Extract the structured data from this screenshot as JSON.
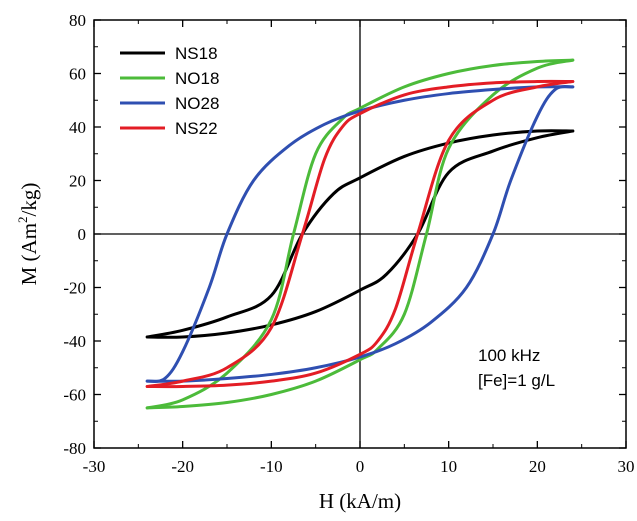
{
  "chart_data": {
    "type": "line",
    "xlabel": "H (kA/m)",
    "ylabel_parts": [
      "M (Am",
      "2",
      "/kg)"
    ],
    "xlim": [
      -30,
      30
    ],
    "ylim": [
      -80,
      80
    ],
    "xticks": [
      -30,
      -20,
      -10,
      0,
      10,
      20,
      30
    ],
    "yticks": [
      -80,
      -60,
      -40,
      -20,
      0,
      20,
      40,
      60,
      80
    ],
    "grid": false,
    "zero_lines": true,
    "legend_position": "top-left",
    "annotations": [
      "100 kHz",
      "[Fe]=1 g/L"
    ],
    "series": [
      {
        "name": "NS18",
        "color": "#000000",
        "hc": 6.5,
        "ms": 38.5,
        "hmax": 24,
        "upper": [
          [
            -24,
            -38.5
          ],
          [
            -20,
            -36
          ],
          [
            -15,
            -31
          ],
          [
            -10,
            -23
          ],
          [
            -6.5,
            0
          ],
          [
            -3,
            15
          ],
          [
            0,
            21
          ],
          [
            5,
            29
          ],
          [
            10,
            34
          ],
          [
            15,
            37
          ],
          [
            20,
            38.5
          ],
          [
            24,
            38.5
          ]
        ],
        "lower": [
          [
            24,
            38.5
          ],
          [
            20,
            36
          ],
          [
            15,
            31
          ],
          [
            10,
            23
          ],
          [
            6.5,
            0
          ],
          [
            3,
            -15
          ],
          [
            0,
            -21
          ],
          [
            -5,
            -29
          ],
          [
            -10,
            -34
          ],
          [
            -15,
            -37
          ],
          [
            -20,
            -38.5
          ],
          [
            -24,
            -38.5
          ]
        ]
      },
      {
        "name": "NO18",
        "color": "#4cbb3a",
        "hc": 7.5,
        "ms": 65,
        "hmax": 24,
        "upper": [
          [
            -24,
            -65
          ],
          [
            -20,
            -62
          ],
          [
            -15,
            -52
          ],
          [
            -10,
            -32
          ],
          [
            -7.5,
            0
          ],
          [
            -5,
            30
          ],
          [
            -2,
            43
          ],
          [
            0,
            47
          ],
          [
            5,
            55
          ],
          [
            10,
            60
          ],
          [
            15,
            63
          ],
          [
            20,
            64.5
          ],
          [
            24,
            65
          ]
        ],
        "lower": [
          [
            24,
            65
          ],
          [
            20,
            62
          ],
          [
            15,
            52
          ],
          [
            10,
            32
          ],
          [
            7.5,
            0
          ],
          [
            5,
            -30
          ],
          [
            2,
            -43
          ],
          [
            0,
            -47
          ],
          [
            -5,
            -55
          ],
          [
            -10,
            -60
          ],
          [
            -15,
            -63
          ],
          [
            -20,
            -64.5
          ],
          [
            -24,
            -65
          ]
        ]
      },
      {
        "name": "NO28",
        "color": "#2f4fb1",
        "hc": 15,
        "ms": 55,
        "hmax": 24,
        "upper": [
          [
            -24,
            -55
          ],
          [
            -22,
            -54
          ],
          [
            -20,
            -44
          ],
          [
            -17,
            -20
          ],
          [
            -15,
            0
          ],
          [
            -12,
            20
          ],
          [
            -8,
            33
          ],
          [
            -4,
            41
          ],
          [
            0,
            46
          ],
          [
            5,
            50
          ],
          [
            10,
            52.5
          ],
          [
            15,
            54
          ],
          [
            20,
            55
          ],
          [
            24,
            55
          ]
        ],
        "lower": [
          [
            24,
            55
          ],
          [
            22,
            54
          ],
          [
            20,
            44
          ],
          [
            17,
            20
          ],
          [
            15,
            0
          ],
          [
            12,
            -20
          ],
          [
            8,
            -33
          ],
          [
            4,
            -41
          ],
          [
            0,
            -46
          ],
          [
            -5,
            -50
          ],
          [
            -10,
            -52.5
          ],
          [
            -15,
            -54
          ],
          [
            -20,
            -55
          ],
          [
            -24,
            -55
          ]
        ]
      },
      {
        "name": "NS22",
        "color": "#e31d25",
        "hc": 6.5,
        "ms": 57,
        "hmax": 24,
        "upper": [
          [
            -24,
            -57
          ],
          [
            -20,
            -55
          ],
          [
            -15,
            -50
          ],
          [
            -10,
            -35
          ],
          [
            -6.5,
            0
          ],
          [
            -4,
            28
          ],
          [
            -2,
            40
          ],
          [
            0,
            45
          ],
          [
            5,
            52
          ],
          [
            10,
            55
          ],
          [
            15,
            56.5
          ],
          [
            20,
            57
          ],
          [
            24,
            57
          ]
        ],
        "lower": [
          [
            24,
            57
          ],
          [
            20,
            55
          ],
          [
            15,
            50
          ],
          [
            10,
            35
          ],
          [
            6.5,
            0
          ],
          [
            4,
            -28
          ],
          [
            2,
            -40
          ],
          [
            0,
            -45
          ],
          [
            -5,
            -52
          ],
          [
            -10,
            -55
          ],
          [
            -15,
            -56.5
          ],
          [
            -20,
            -57
          ],
          [
            -24,
            -57
          ]
        ]
      }
    ]
  }
}
